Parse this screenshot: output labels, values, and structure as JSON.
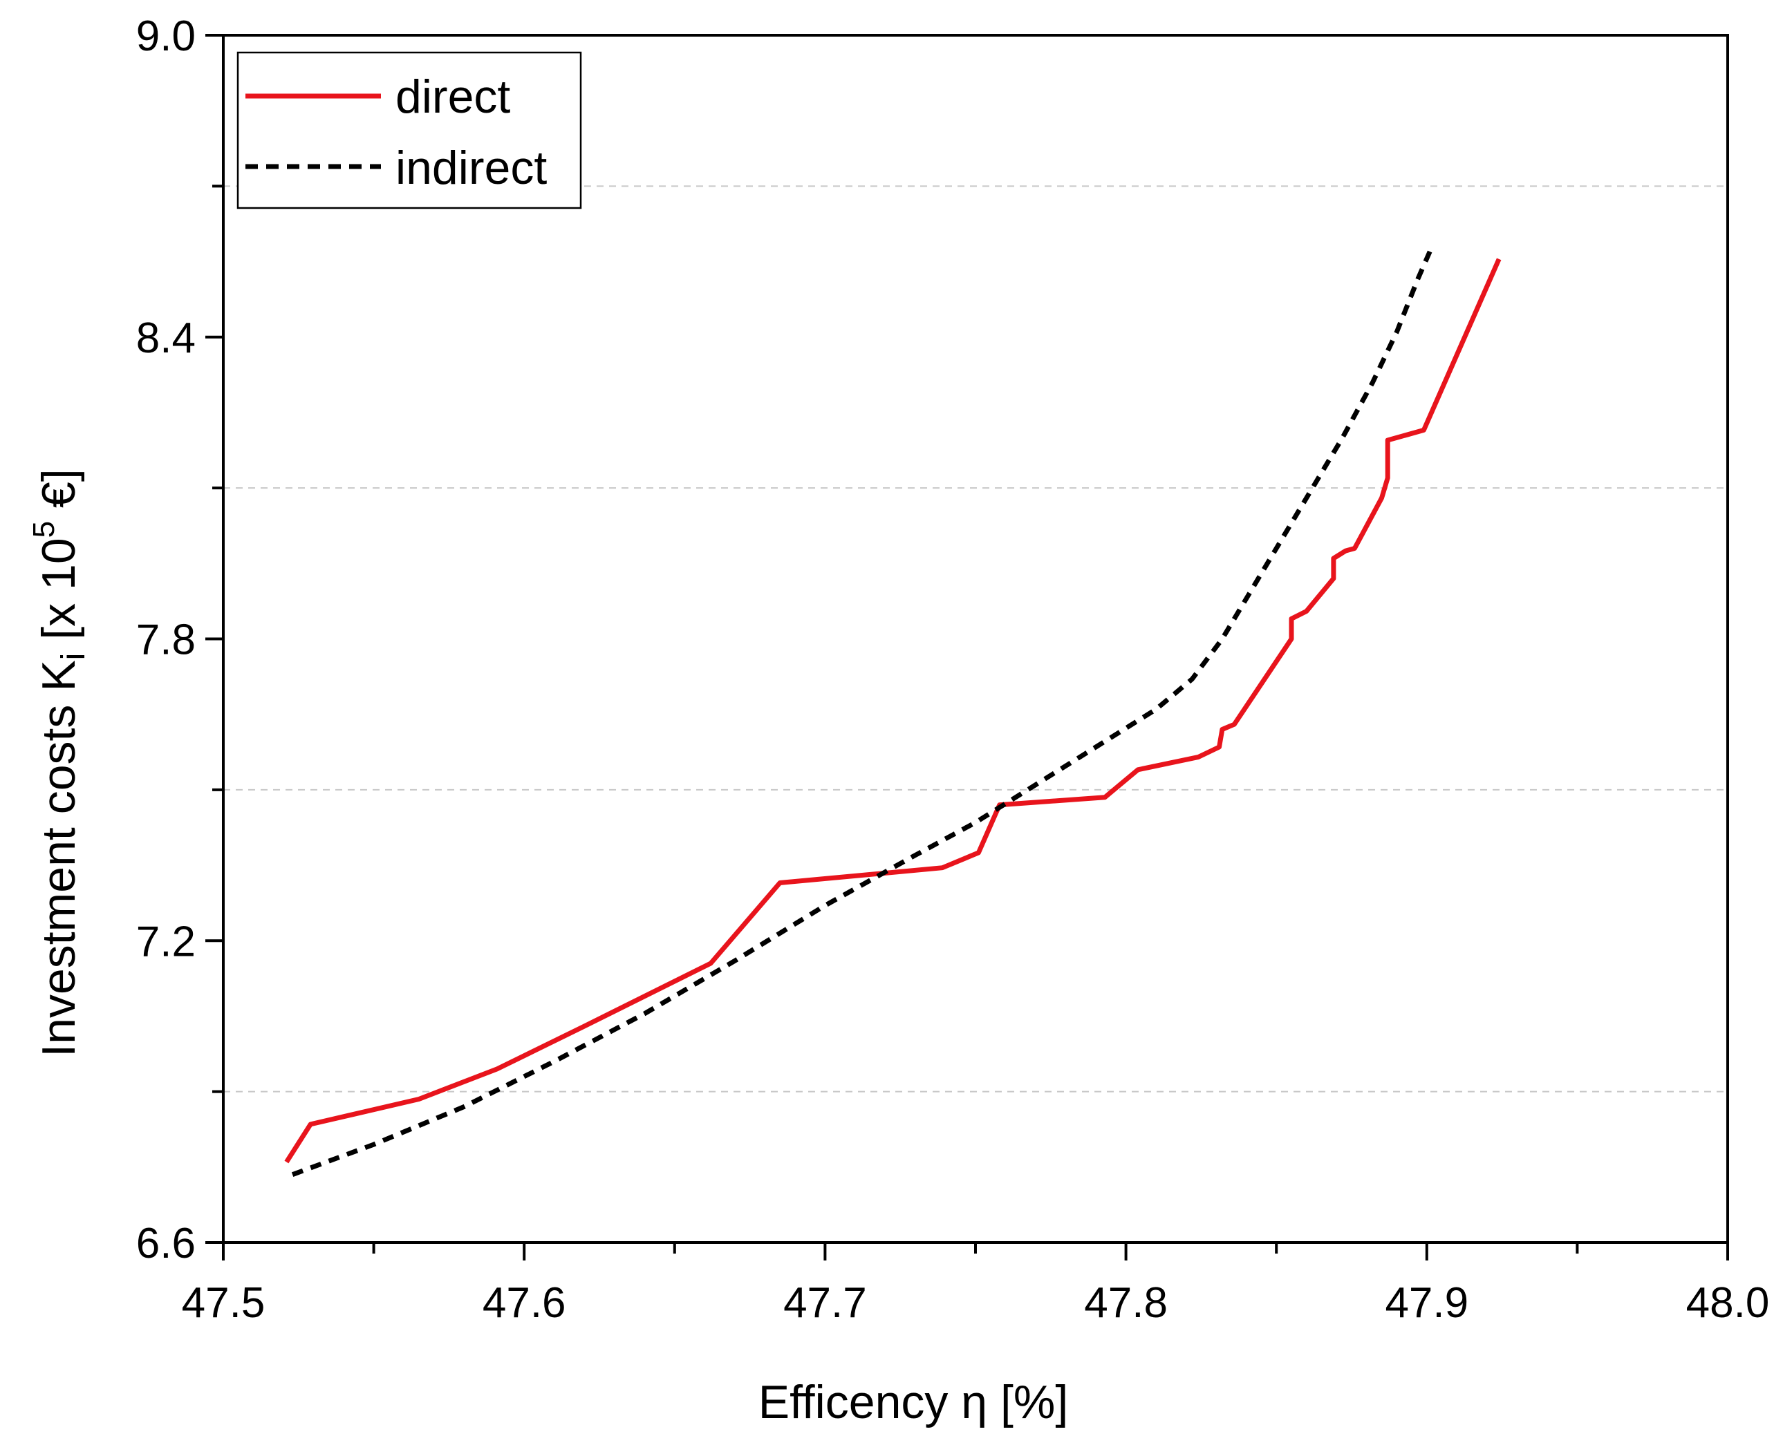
{
  "chart_data": {
    "type": "line",
    "title": "",
    "xlabel": "Efficency η [%]",
    "ylabel": {
      "main": "Investment costs K",
      "subscript": "i",
      "rest": " [x 10",
      "superscript": "5",
      "unit": " €]"
    },
    "xlim": [
      47.5,
      48.0
    ],
    "ylim": [
      6.6,
      9.0
    ],
    "x_major_ticks": [
      47.5,
      47.6,
      47.7,
      47.8,
      47.9,
      48.0
    ],
    "x_tick_labels": [
      "47.5",
      "47.6",
      "47.7",
      "47.8",
      "47.9",
      "48.0"
    ],
    "x_minor_ticks": [
      47.55,
      47.65,
      47.75,
      47.85,
      47.95
    ],
    "y_major_ticks": [
      6.6,
      7.2,
      7.8,
      8.4,
      9.0
    ],
    "y_tick_labels": [
      "6.6",
      "7.2",
      "7.8",
      "8.4",
      "9.0"
    ],
    "y_minor_ticks": [
      6.9,
      7.5,
      8.1,
      8.7
    ],
    "grid": "horizontal dashed at minor y ticks",
    "legend_position": "top-left",
    "series": [
      {
        "name": "direct",
        "style": "solid",
        "color": "#e8141c",
        "points": [
          [
            47.521,
            6.76
          ],
          [
            47.529,
            6.835
          ],
          [
            47.565,
            6.885
          ],
          [
            47.591,
            6.945
          ],
          [
            47.62,
            7.03
          ],
          [
            47.662,
            7.155
          ],
          [
            47.685,
            7.315
          ],
          [
            47.739,
            7.345
          ],
          [
            47.751,
            7.375
          ],
          [
            47.758,
            7.47
          ],
          [
            47.793,
            7.485
          ],
          [
            47.8,
            7.52
          ],
          [
            47.804,
            7.54
          ],
          [
            47.824,
            7.565
          ],
          [
            47.831,
            7.585
          ],
          [
            47.832,
            7.62
          ],
          [
            47.836,
            7.63
          ],
          [
            47.855,
            7.8
          ],
          [
            47.855,
            7.84
          ],
          [
            47.86,
            7.855
          ],
          [
            47.869,
            7.92
          ],
          [
            47.869,
            7.96
          ],
          [
            47.873,
            7.975
          ],
          [
            47.876,
            7.98
          ],
          [
            47.885,
            8.08
          ],
          [
            47.887,
            8.12
          ],
          [
            47.887,
            8.195
          ],
          [
            47.899,
            8.215
          ],
          [
            47.924,
            8.555
          ]
        ]
      },
      {
        "name": "indirect",
        "style": "dashed",
        "color": "#000000",
        "points": [
          [
            47.523,
            6.735
          ],
          [
            47.55,
            6.795
          ],
          [
            47.58,
            6.87
          ],
          [
            47.61,
            6.96
          ],
          [
            47.64,
            7.055
          ],
          [
            47.67,
            7.16
          ],
          [
            47.7,
            7.27
          ],
          [
            47.73,
            7.37
          ],
          [
            47.75,
            7.435
          ],
          [
            47.77,
            7.51
          ],
          [
            47.79,
            7.585
          ],
          [
            47.81,
            7.66
          ],
          [
            47.822,
            7.72
          ],
          [
            47.832,
            7.8
          ],
          [
            47.842,
            7.9
          ],
          [
            47.852,
            8.0
          ],
          [
            47.862,
            8.1
          ],
          [
            47.872,
            8.2
          ],
          [
            47.882,
            8.31
          ],
          [
            47.89,
            8.41
          ],
          [
            47.897,
            8.515
          ],
          [
            47.901,
            8.57
          ]
        ]
      }
    ]
  }
}
